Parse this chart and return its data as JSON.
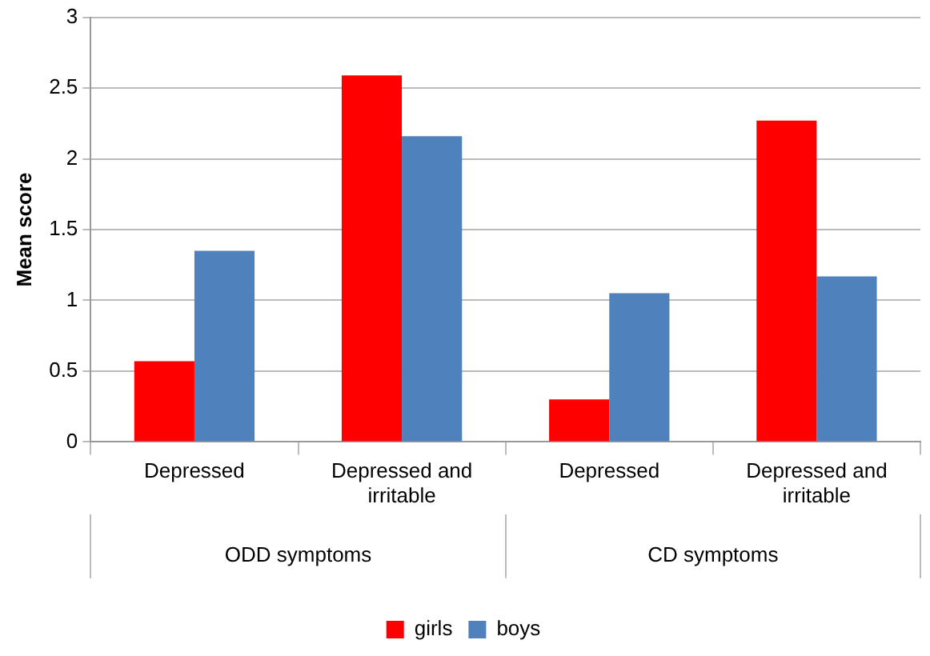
{
  "chart_data": {
    "type": "bar",
    "ylabel": "Mean score",
    "categories": [
      "Depressed",
      "Depressed and irritable",
      "Depressed",
      "Depressed and irritable"
    ],
    "series": [
      {
        "name": "girls",
        "color": "#ff0000",
        "values": [
          0.57,
          2.59,
          0.3,
          2.27
        ]
      },
      {
        "name": "boys",
        "color": "#4f81bd",
        "values": [
          1.35,
          2.16,
          1.05,
          1.17
        ]
      }
    ],
    "annotations": [
      "ODD symptoms",
      "CD symptoms"
    ],
    "ylim": [
      0,
      3
    ],
    "yticks": [
      0,
      0.5,
      1,
      1.5,
      2,
      2.5,
      3
    ],
    "grid": "y",
    "legend": "bottom"
  }
}
